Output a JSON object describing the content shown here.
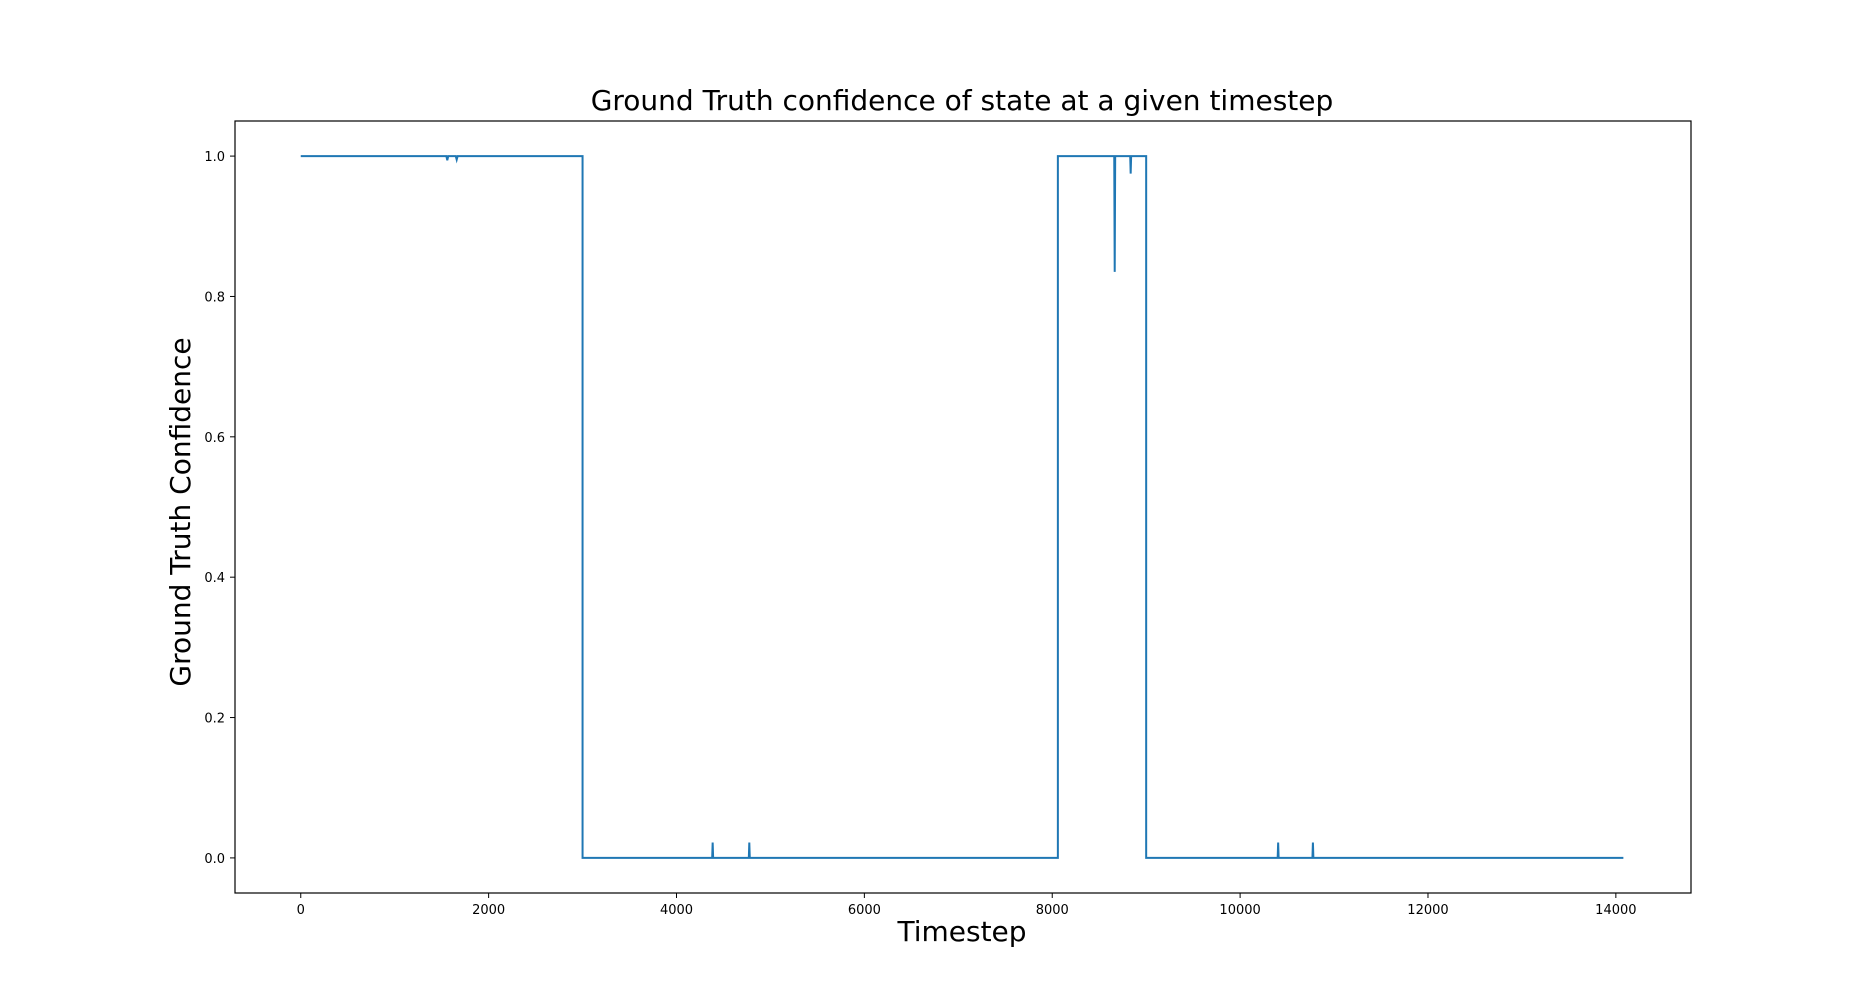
{
  "chart_data": {
    "type": "line",
    "title": "Ground Truth confidence of state at a given timestep",
    "xlabel": "Timestep",
    "ylabel": "Ground Truth Confidence",
    "xlim": [
      -700,
      14800
    ],
    "ylim": [
      -0.05,
      1.05
    ],
    "xticks": [
      0,
      2000,
      4000,
      6000,
      8000,
      10000,
      12000,
      14000
    ],
    "xtick_labels": [
      "0",
      "2000",
      "4000",
      "6000",
      "8000",
      "10000",
      "12000",
      "14000"
    ],
    "yticks": [
      0.0,
      0.2,
      0.4,
      0.6,
      0.8,
      1.0
    ],
    "ytick_labels": [
      "0.0",
      "0.2",
      "0.4",
      "0.6",
      "0.8",
      "1.0"
    ],
    "grid": false,
    "color": "#1f77b4",
    "series": [
      {
        "name": "",
        "x": [
          0,
          1550,
          1560,
          1570,
          1650,
          1660,
          1670,
          3000,
          3000,
          4380,
          4385,
          4390,
          4770,
          4775,
          4780,
          8060,
          8060,
          8660,
          8665,
          8670,
          8830,
          8835,
          8840,
          9000,
          9000,
          10400,
          10405,
          10410,
          10770,
          10775,
          10780,
          14080
        ],
        "y": [
          1.0,
          1.0,
          0.994,
          1.0,
          1.0,
          0.995,
          1.0,
          1.0,
          0.0,
          0.0,
          0.022,
          0.0,
          0.0,
          0.022,
          0.0,
          0.0,
          1.0,
          1.0,
          0.835,
          1.0,
          1.0,
          0.975,
          1.0,
          1.0,
          0.0,
          0.0,
          0.022,
          0.0,
          0.0,
          0.022,
          0.0,
          0.0
        ]
      }
    ]
  }
}
